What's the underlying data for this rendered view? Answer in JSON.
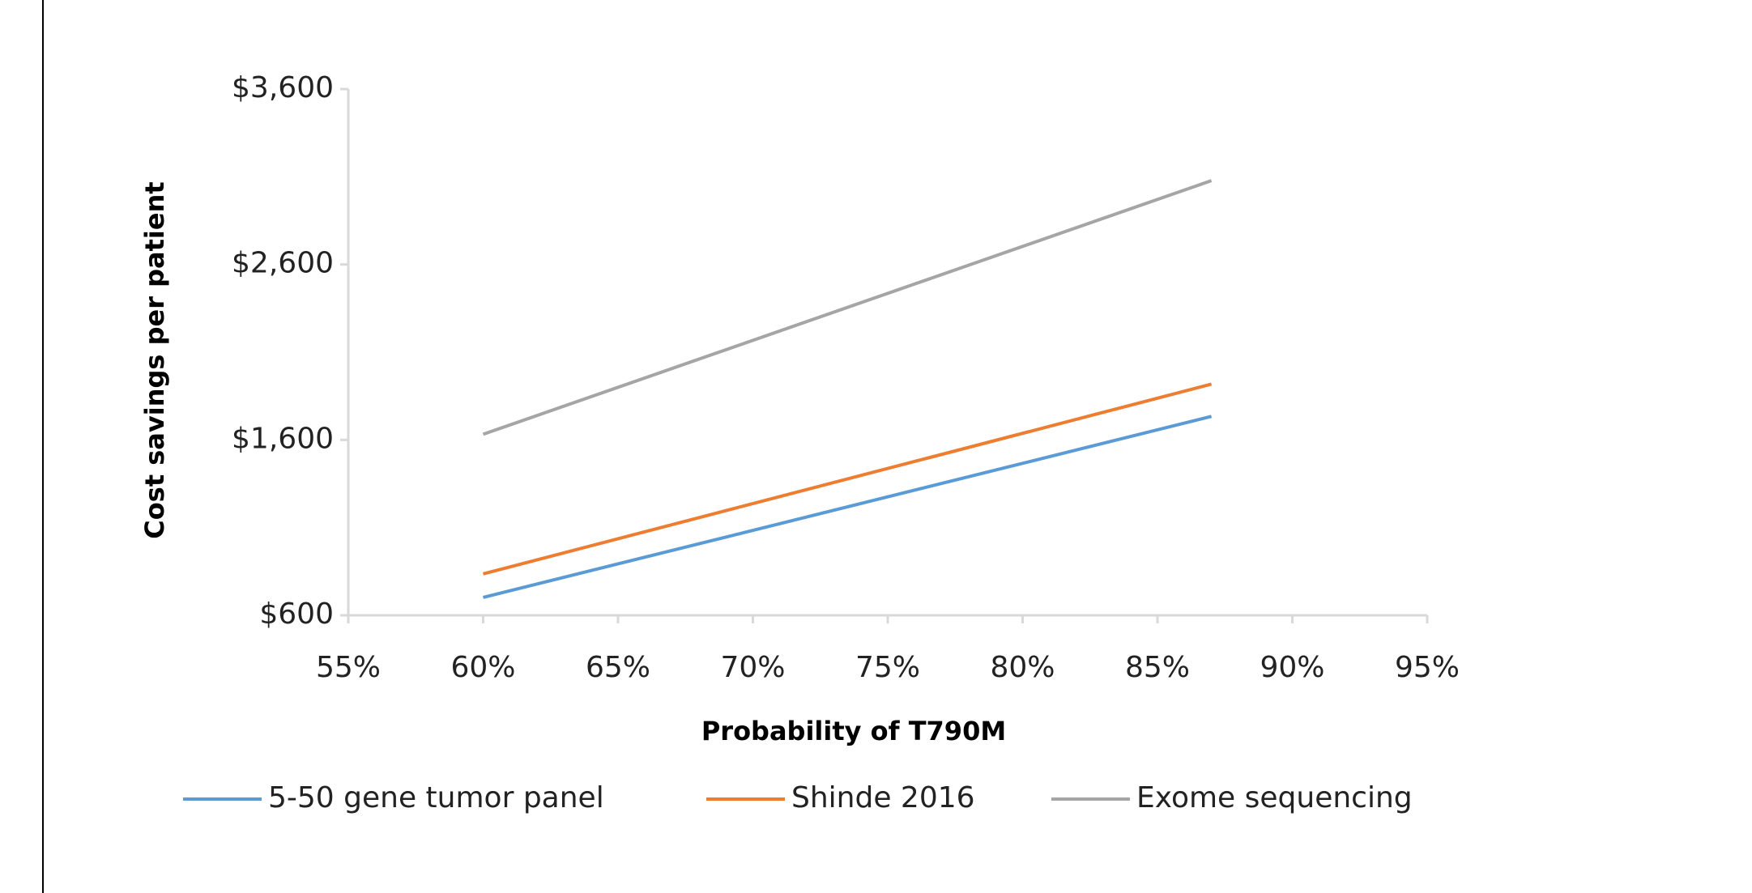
{
  "chart_data": {
    "type": "line",
    "x_label": "Probability of T790M",
    "y_label": "Cost savings per patient",
    "x": [
      60,
      87
    ],
    "series": [
      {
        "name": "5-50 gene tumor panel",
        "color": "#5b9bd5",
        "values": [
          702,
          1734
        ]
      },
      {
        "name": "Shinde 2016",
        "color": "#ed7d31",
        "values": [
          836,
          1918
        ]
      },
      {
        "name": "Exome sequencing",
        "color": "#a5a5a5",
        "values": [
          1632,
          3078
        ]
      }
    ],
    "xlim": [
      55,
      95
    ],
    "xticks": [
      {
        "value": 55,
        "label": "55%"
      },
      {
        "value": 60,
        "label": "60%"
      },
      {
        "value": 65,
        "label": "65%"
      },
      {
        "value": 70,
        "label": "70%"
      },
      {
        "value": 75,
        "label": "75%"
      },
      {
        "value": 80,
        "label": "80%"
      },
      {
        "value": 85,
        "label": "85%"
      },
      {
        "value": 90,
        "label": "90%"
      },
      {
        "value": 95,
        "label": "95%"
      }
    ],
    "ylim": [
      600,
      3600
    ],
    "yticks": [
      {
        "value": 600,
        "label": "$600"
      },
      {
        "value": 1600,
        "label": "$1,600"
      },
      {
        "value": 2600,
        "label": "$2,600"
      },
      {
        "value": 3600,
        "label": "$3,600"
      }
    ],
    "grid": false,
    "legend": "bottom"
  }
}
